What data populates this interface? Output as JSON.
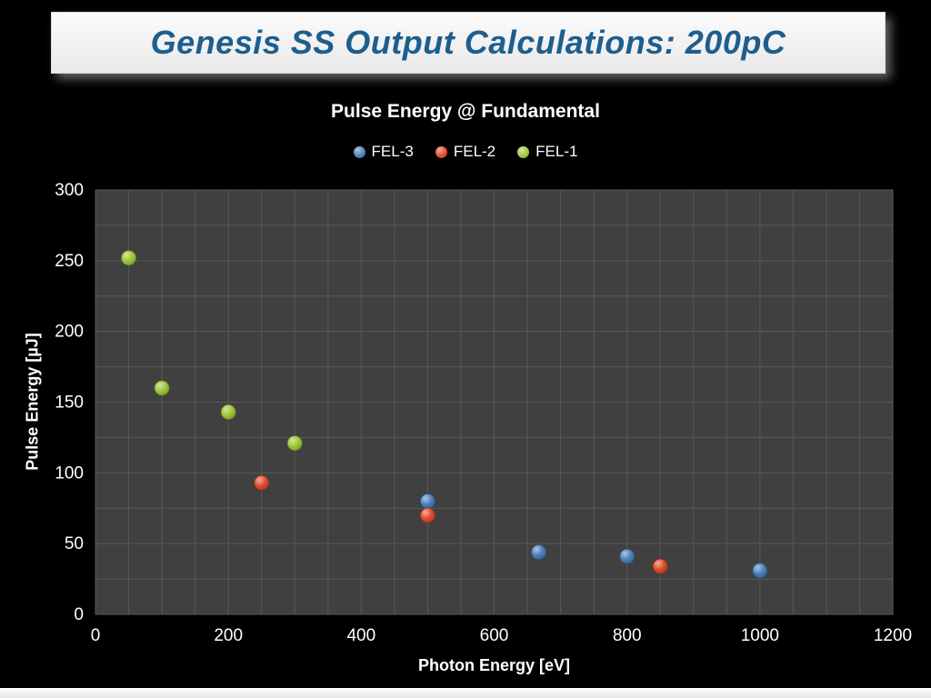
{
  "slide": {
    "title": "Genesis SS Output Calculations: 200pC",
    "title_color": "#1d5e8e",
    "background": "#000000"
  },
  "chart_data": {
    "type": "scatter",
    "title": "Pulse Energy @ Fundamental",
    "xlabel": "Photon Energy [eV]",
    "ylabel": "Pulse Energy [µJ]",
    "xlim": [
      0,
      1200
    ],
    "ylim": [
      0,
      300
    ],
    "xticks": [
      0,
      200,
      400,
      600,
      800,
      1000,
      1200
    ],
    "yticks": [
      0,
      50,
      100,
      150,
      200,
      250,
      300
    ],
    "minor_grid_x": 50,
    "minor_grid_y": 25,
    "grid": true,
    "grid_color": "#585858",
    "plot_bg": "#404040",
    "legend_position": "top",
    "series": [
      {
        "name": "FEL-3",
        "color": "#4a7ebb",
        "points": [
          [
            500,
            80
          ],
          [
            667,
            44
          ],
          [
            800,
            41
          ],
          [
            1000,
            31
          ]
        ]
      },
      {
        "name": "FEL-2",
        "color": "#e0492a",
        "points": [
          [
            250,
            93
          ],
          [
            500,
            70
          ],
          [
            850,
            34
          ]
        ]
      },
      {
        "name": "FEL-1",
        "color": "#9ec637",
        "points": [
          [
            50,
            252
          ],
          [
            100,
            160
          ],
          [
            200,
            143
          ],
          [
            300,
            121
          ]
        ]
      }
    ]
  }
}
